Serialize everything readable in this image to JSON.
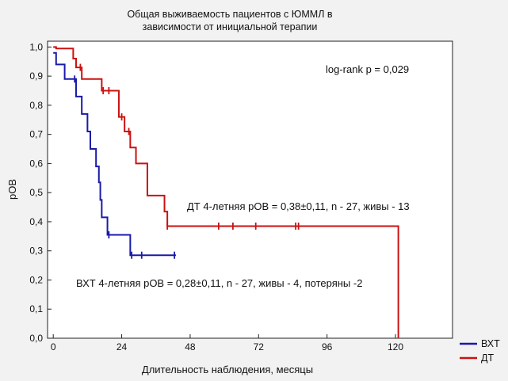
{
  "chart_data": {
    "type": "line",
    "subtype": "kaplan-meier",
    "title_lines": [
      "Общая выживаемость пациентов с ЮММЛ в",
      "зависимости от инициальной терапии"
    ],
    "xlabel": "Длительность наблюдения, месяцы",
    "ylabel": "pOB",
    "xlim": [
      -2,
      140
    ],
    "ylim": [
      0,
      1.02
    ],
    "x_ticks": [
      0,
      24,
      48,
      72,
      96,
      120
    ],
    "x_tick_labels": [
      "0",
      "24",
      "48",
      "72",
      "96",
      "120"
    ],
    "y_ticks": [
      0,
      0.1,
      0.2,
      0.3,
      0.4,
      0.5,
      0.6,
      0.7,
      0.8,
      0.9,
      1.0
    ],
    "y_tick_labels": [
      "0,0",
      "0,1",
      "0,2",
      "0,3",
      "0,4",
      "0,5",
      "0,6",
      "0,7",
      "0,8",
      "0,9",
      "1,0"
    ],
    "grid": false,
    "legend_position": "bottom-right",
    "series": [
      {
        "name": "ВХТ",
        "color": "#1a1aa8",
        "steps": [
          [
            0,
            0.98
          ],
          [
            1,
            0.94
          ],
          [
            4,
            0.89
          ],
          [
            8,
            0.83
          ],
          [
            10,
            0.77
          ],
          [
            12,
            0.71
          ],
          [
            13,
            0.65
          ],
          [
            15,
            0.59
          ],
          [
            16,
            0.535
          ],
          [
            16.5,
            0.475
          ],
          [
            17,
            0.415
          ],
          [
            19,
            0.355
          ],
          [
            27,
            0.285
          ],
          [
            43,
            0.285
          ]
        ],
        "censored": [
          [
            7.5,
            0.89
          ],
          [
            19.5,
            0.355
          ],
          [
            27.5,
            0.285
          ],
          [
            31,
            0.285
          ],
          [
            42.5,
            0.285
          ]
        ]
      },
      {
        "name": "ДТ",
        "color": "#cc1111",
        "steps": [
          [
            0,
            1.0
          ],
          [
            1,
            0.995
          ],
          [
            7,
            0.96
          ],
          [
            8,
            0.93
          ],
          [
            10,
            0.89
          ],
          [
            17,
            0.85
          ],
          [
            23,
            0.76
          ],
          [
            25,
            0.71
          ],
          [
            27,
            0.655
          ],
          [
            29,
            0.6
          ],
          [
            33,
            0.49
          ],
          [
            39,
            0.435
          ],
          [
            40,
            0.385
          ],
          [
            120,
            0.385
          ],
          [
            121,
            0.0
          ]
        ],
        "censored": [
          [
            9.5,
            0.93
          ],
          [
            17.5,
            0.85
          ],
          [
            19.5,
            0.85
          ],
          [
            24,
            0.76
          ],
          [
            26.5,
            0.71
          ],
          [
            40,
            0.385
          ],
          [
            58,
            0.385
          ],
          [
            63,
            0.385
          ],
          [
            71,
            0.385
          ],
          [
            85,
            0.385
          ],
          [
            86,
            0.385
          ]
        ]
      }
    ],
    "annotations": {
      "logrank": "log-rank p = 0,029",
      "dt": "ДТ 4-летняя pOB = 0,38±0,11, n - 27, живы - 13",
      "vxt": "ВХТ 4-летняя pOB = 0,28±0,11, n - 27, живы - 4, потеряны -2"
    },
    "legend": [
      {
        "label": "ВХТ",
        "color": "#1a1aa8"
      },
      {
        "label": "ДТ",
        "color": "#cc1111"
      }
    ]
  }
}
